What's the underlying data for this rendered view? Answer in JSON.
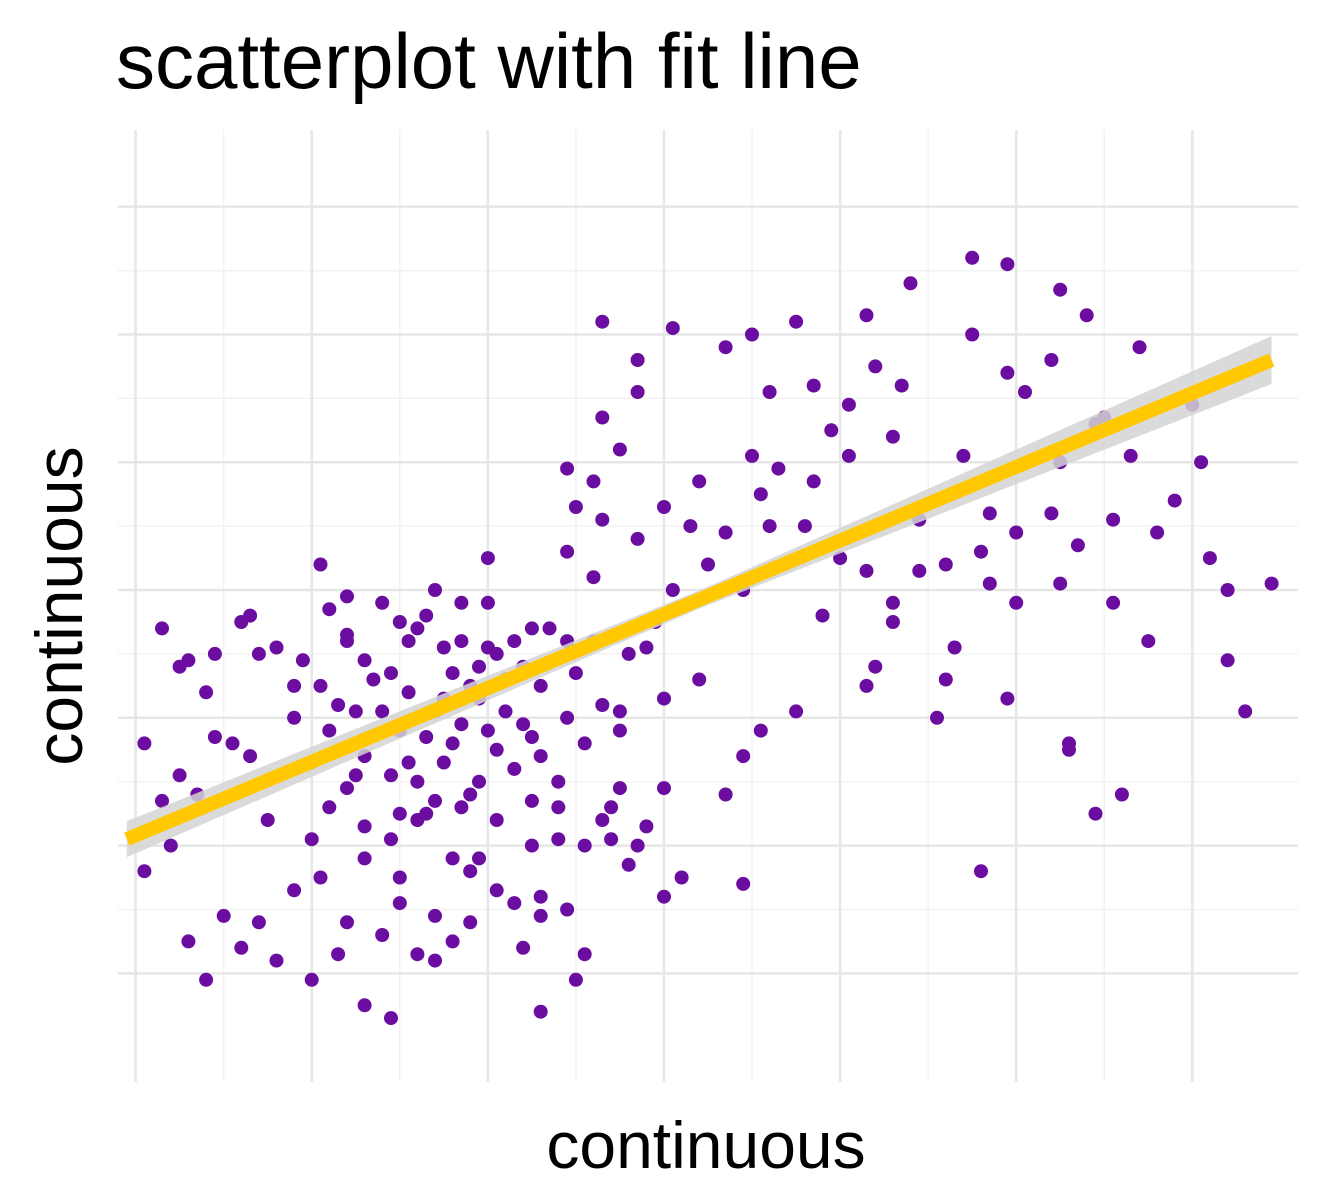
{
  "chart_data": {
    "type": "scatter",
    "title": "scatterplot with fit line",
    "xlabel": "continuous",
    "ylabel": "continuous",
    "grid": true,
    "legend": "none",
    "x_range": [
      -1.1,
      5.6
    ],
    "y_range": [
      -1.85,
      5.6
    ],
    "x_ticks": [
      -1,
      0,
      1,
      2,
      3,
      4,
      5
    ],
    "y_ticks": [
      -1,
      0,
      1,
      2,
      3,
      4,
      5
    ],
    "point_color": "#6A0DA0",
    "fit_line": {
      "color": "#FFC800",
      "ribbon_color": "#D3D3D3",
      "x": [
        -1.05,
        5.45
      ],
      "y": [
        0.05,
        3.8
      ]
    },
    "series": [
      {
        "points": [
          [
            -0.95,
            0.8
          ],
          [
            -0.85,
            1.7
          ],
          [
            -0.75,
            0.55
          ],
          [
            -0.65,
            0.4
          ],
          [
            -0.55,
            0.85
          ],
          [
            -0.45,
            0.8
          ],
          [
            -0.35,
            0.7
          ],
          [
            -0.3,
            1.5
          ],
          [
            -0.2,
            1.55
          ],
          [
            -0.1,
            1.0
          ],
          [
            -0.05,
            1.45
          ],
          [
            0.0,
            0.65
          ],
          [
            0.05,
            1.25
          ],
          [
            0.1,
            0.9
          ],
          [
            0.15,
            1.1
          ],
          [
            0.2,
            0.45
          ],
          [
            0.25,
            1.05
          ],
          [
            0.3,
            0.7
          ],
          [
            0.35,
            1.3
          ],
          [
            0.4,
            1.9
          ],
          [
            0.45,
            0.55
          ],
          [
            0.5,
            0.9
          ],
          [
            0.55,
            1.2
          ],
          [
            0.6,
            0.5
          ],
          [
            0.65,
            1.8
          ],
          [
            0.7,
            1.05
          ],
          [
            0.75,
            0.65
          ],
          [
            0.8,
            1.35
          ],
          [
            0.85,
            0.95
          ],
          [
            0.9,
            0.4
          ],
          [
            0.95,
            1.15
          ],
          [
            1.0,
            1.55
          ],
          [
            1.05,
            0.75
          ],
          [
            1.1,
            1.05
          ],
          [
            1.15,
            0.6
          ],
          [
            1.2,
            1.4
          ],
          [
            1.25,
            0.85
          ],
          [
            1.3,
            1.25
          ],
          [
            1.35,
            1.7
          ],
          [
            1.4,
            0.5
          ],
          [
            1.45,
            1.0
          ],
          [
            1.5,
            1.35
          ],
          [
            1.55,
            0.8
          ],
          [
            1.6,
            1.6
          ],
          [
            1.65,
            1.1
          ],
          [
            1.7,
            0.3
          ],
          [
            1.75,
            0.9
          ],
          [
            1.8,
            1.5
          ],
          [
            0.1,
            0.3
          ],
          [
            0.2,
            1.6
          ],
          [
            0.3,
            1.45
          ],
          [
            0.45,
            1.35
          ],
          [
            0.55,
            0.65
          ],
          [
            0.6,
            1.7
          ],
          [
            0.7,
            0.35
          ],
          [
            0.75,
            1.55
          ],
          [
            0.85,
            1.6
          ],
          [
            0.95,
            0.5
          ],
          [
            1.05,
            1.5
          ],
          [
            1.15,
            1.6
          ],
          [
            0.5,
            0.25
          ],
          [
            0.4,
            1.05
          ],
          [
            0.8,
            0.8
          ],
          [
            0.9,
            1.25
          ],
          [
            1.0,
            0.9
          ],
          [
            1.2,
            0.95
          ],
          [
            0.65,
            0.85
          ],
          [
            0.75,
            1.15
          ],
          [
            0.95,
            1.4
          ],
          [
            1.1,
            1.3
          ],
          [
            1.3,
            0.7
          ],
          [
            1.45,
            1.6
          ],
          [
            -0.35,
            1.8
          ],
          [
            -0.55,
            1.5
          ],
          [
            -0.7,
            1.45
          ],
          [
            0.2,
            1.95
          ],
          [
            0.5,
            1.75
          ],
          [
            1.0,
            1.9
          ],
          [
            0.3,
            0.15
          ],
          [
            0.6,
            0.2
          ],
          [
            0.85,
            0.3
          ],
          [
            1.05,
            0.2
          ],
          [
            1.25,
            0.35
          ],
          [
            1.4,
            0.3
          ],
          [
            -0.85,
            0.35
          ],
          [
            -0.75,
            1.4
          ],
          [
            -0.6,
            1.2
          ],
          [
            -0.25,
            0.2
          ],
          [
            0.0,
            0.05
          ],
          [
            0.3,
            -0.1
          ],
          [
            0.5,
            -0.25
          ],
          [
            0.7,
            -0.55
          ],
          [
            0.8,
            -0.1
          ],
          [
            0.95,
            -0.1
          ],
          [
            1.05,
            -0.35
          ],
          [
            1.3,
            -0.4
          ],
          [
            1.15,
            -0.45
          ],
          [
            1.25,
            0.0
          ],
          [
            1.4,
            0.05
          ],
          [
            1.55,
            0.0
          ],
          [
            1.7,
            0.05
          ],
          [
            1.85,
            0.0
          ],
          [
            0.1,
            1.85
          ],
          [
            0.2,
            1.65
          ],
          [
            0.55,
            1.6
          ],
          [
            0.85,
            1.9
          ],
          [
            1.25,
            1.7
          ],
          [
            1.75,
            1.05
          ],
          [
            0.7,
            2.0
          ],
          [
            1.0,
            2.25
          ],
          [
            1.45,
            2.3
          ],
          [
            1.6,
            2.1
          ],
          [
            1.95,
            1.75
          ],
          [
            2.05,
            2.0
          ],
          [
            0.05,
            2.2
          ],
          [
            -0.4,
            1.75
          ],
          [
            -0.1,
            1.25
          ],
          [
            0.25,
            0.55
          ],
          [
            0.45,
            0.05
          ],
          [
            0.65,
            0.25
          ],
          [
            1.5,
            2.65
          ],
          [
            1.65,
            2.55
          ],
          [
            1.85,
            2.4
          ],
          [
            2.25,
            2.2
          ],
          [
            2.45,
            2.0
          ],
          [
            2.6,
            2.5
          ],
          [
            1.6,
            2.85
          ],
          [
            1.75,
            3.1
          ],
          [
            2.0,
            2.65
          ],
          [
            2.15,
            2.5
          ],
          [
            2.35,
            2.45
          ],
          [
            2.55,
            2.75
          ],
          [
            1.45,
            2.95
          ],
          [
            1.65,
            3.35
          ],
          [
            1.85,
            3.55
          ],
          [
            2.2,
            2.85
          ],
          [
            2.5,
            3.05
          ],
          [
            2.8,
            2.5
          ],
          [
            2.65,
            2.95
          ],
          [
            2.85,
            2.85
          ],
          [
            3.0,
            2.25
          ],
          [
            3.15,
            2.15
          ],
          [
            3.3,
            1.9
          ],
          [
            3.45,
            2.15
          ],
          [
            2.95,
            3.25
          ],
          [
            3.05,
            3.05
          ],
          [
            3.3,
            3.2
          ],
          [
            3.45,
            2.55
          ],
          [
            3.6,
            2.2
          ],
          [
            3.85,
            2.05
          ],
          [
            3.7,
            3.05
          ],
          [
            3.85,
            2.6
          ],
          [
            4.0,
            2.45
          ],
          [
            4.2,
            2.6
          ],
          [
            4.35,
            2.35
          ],
          [
            4.55,
            2.55
          ],
          [
            4.05,
            3.55
          ],
          [
            4.25,
            3.0
          ],
          [
            4.45,
            3.3
          ],
          [
            4.65,
            3.05
          ],
          [
            4.8,
            2.45
          ],
          [
            4.9,
            2.7
          ],
          [
            3.75,
            4.0
          ],
          [
            3.95,
            3.7
          ],
          [
            4.2,
            3.8
          ],
          [
            4.5,
            3.35
          ],
          [
            4.7,
            3.9
          ],
          [
            5.05,
            3.0
          ],
          [
            1.65,
            4.1
          ],
          [
            2.05,
            4.05
          ],
          [
            2.5,
            4.0
          ],
          [
            2.75,
            4.1
          ],
          [
            2.85,
            3.6
          ],
          [
            3.15,
            4.15
          ],
          [
            1.85,
            3.8
          ],
          [
            2.35,
            3.9
          ],
          [
            2.6,
            3.55
          ],
          [
            3.05,
            3.45
          ],
          [
            3.2,
            3.75
          ],
          [
            3.35,
            3.6
          ],
          [
            3.4,
            4.4
          ],
          [
            3.75,
            4.6
          ],
          [
            3.95,
            4.55
          ],
          [
            4.25,
            4.35
          ],
          [
            4.4,
            4.15
          ],
          [
            5.0,
            3.45
          ],
          [
            5.1,
            2.25
          ],
          [
            5.2,
            2.0
          ],
          [
            4.75,
            1.6
          ],
          [
            4.55,
            1.9
          ],
          [
            4.3,
            0.8
          ],
          [
            3.55,
            1.0
          ],
          [
            3.15,
            1.25
          ],
          [
            2.75,
            1.05
          ],
          [
            2.2,
            1.3
          ],
          [
            1.9,
            1.55
          ],
          [
            2.0,
            1.15
          ],
          [
            1.75,
            0.45
          ],
          [
            2.35,
            0.4
          ],
          [
            2.45,
            0.7
          ],
          [
            2.55,
            0.9
          ],
          [
            2.9,
            1.8
          ],
          [
            3.3,
            1.75
          ],
          [
            3.65,
            1.55
          ],
          [
            3.2,
            1.4
          ],
          [
            3.6,
            1.3
          ],
          [
            3.95,
            1.15
          ],
          [
            3.8,
            2.3
          ],
          [
            4.0,
            1.9
          ],
          [
            4.25,
            2.05
          ],
          [
            5.45,
            2.05
          ],
          [
            5.3,
            1.05
          ],
          [
            5.2,
            1.45
          ],
          [
            4.6,
            0.4
          ],
          [
            4.45,
            0.25
          ],
          [
            4.3,
            0.75
          ],
          [
            3.8,
            -0.2
          ],
          [
            2.45,
            -0.3
          ],
          [
            1.3,
            -0.55
          ],
          [
            1.65,
            0.2
          ],
          [
            1.9,
            0.15
          ],
          [
            2.0,
            0.45
          ],
          [
            -0.1,
            -0.35
          ],
          [
            -0.5,
            -0.55
          ],
          [
            -0.8,
            0.0
          ],
          [
            -0.95,
            -0.2
          ],
          [
            0.05,
            -0.25
          ],
          [
            0.2,
            -0.6
          ],
          [
            0.3,
            -1.25
          ],
          [
            0.6,
            -0.85
          ],
          [
            0.8,
            -0.75
          ],
          [
            -0.2,
            -0.9
          ],
          [
            0.0,
            -1.05
          ],
          [
            -0.3,
            -0.6
          ],
          [
            1.2,
            -0.8
          ],
          [
            1.45,
            -0.5
          ],
          [
            1.5,
            -1.05
          ],
          [
            1.3,
            -1.3
          ],
          [
            0.7,
            -0.9
          ],
          [
            2.0,
            -0.4
          ],
          [
            1.55,
            -0.85
          ],
          [
            1.8,
            -0.15
          ],
          [
            2.1,
            -0.25
          ],
          [
            0.4,
            -0.7
          ],
          [
            0.5,
            -0.45
          ],
          [
            0.9,
            -0.6
          ],
          [
            -0.7,
            -0.75
          ],
          [
            -0.4,
            -0.8
          ],
          [
            -0.6,
            -1.05
          ],
          [
            0.15,
            -0.85
          ],
          [
            0.45,
            -1.35
          ],
          [
            0.9,
            -0.2
          ]
        ]
      }
    ]
  }
}
